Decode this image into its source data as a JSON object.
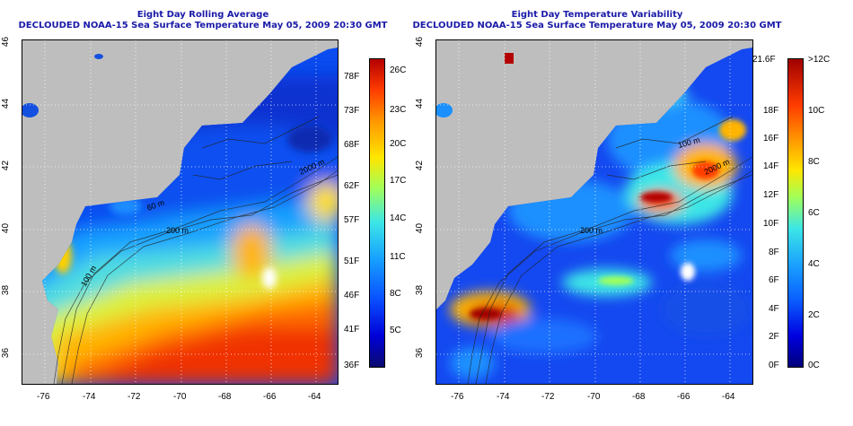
{
  "left_panel": {
    "title_line1": "Eight Day Rolling Average",
    "title_line2": "DECLOUDED NOAA-15 Sea Surface Temperature May 05, 2009 20:30 GMT",
    "colorbar_f": [
      "78F",
      "73F",
      "68F",
      "62F",
      "57F",
      "51F",
      "46F",
      "41F",
      "36F"
    ],
    "colorbar_c": [
      "26C",
      "23C",
      "20C",
      "17C",
      "14C",
      "11C",
      "8C",
      "5C"
    ],
    "contour_labels": [
      "2000 m",
      "200 m",
      "100 m",
      "60 m"
    ]
  },
  "right_panel": {
    "title_line1": "Eight Day Temperature Variability",
    "title_line2": "DECLOUDED NOAA-15 Sea Surface Temperature May 05, 2009 20:30 GMT",
    "colorbar_f": [
      "21.6F",
      "18F",
      "16F",
      "14F",
      "12F",
      "10F",
      "8F",
      "6F",
      "4F",
      "2F",
      "0F"
    ],
    "colorbar_c": [
      ">12C",
      "10C",
      "8C",
      "6C",
      "4C",
      "2C",
      "0C"
    ],
    "contour_labels": [
      "100 m",
      "2000 m",
      "200 m"
    ]
  },
  "axes": {
    "lon_ticks": [
      "-76",
      "-74",
      "-72",
      "-70",
      "-68",
      "-66",
      "-64"
    ],
    "lat_ticks": [
      "36",
      "38",
      "40",
      "42",
      "44",
      "46"
    ]
  },
  "colors": {
    "land": "#bebebe",
    "title": "#1a1aa8",
    "sst_scale": [
      "#0a0a6e",
      "#0000d8",
      "#0a50ff",
      "#16a0ff",
      "#3ce6e6",
      "#a0ff5a",
      "#ffe600",
      "#ff9600",
      "#ff3c00",
      "#b40000"
    ]
  }
}
